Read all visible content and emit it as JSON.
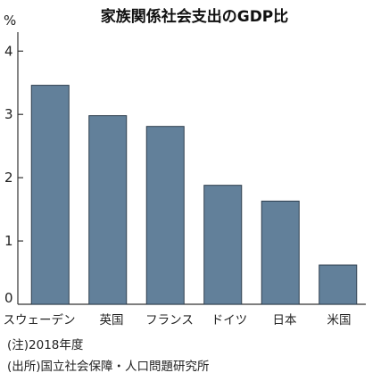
{
  "chart_data": {
    "type": "bar",
    "title": "家族関係社会支出のGDP比",
    "unit": "%",
    "categories": [
      "スウェーデン",
      "英国",
      "フランス",
      "ドイツ",
      "日本",
      "米国"
    ],
    "values": [
      3.46,
      2.98,
      2.81,
      1.88,
      1.63,
      0.62
    ],
    "yticks": [
      0,
      1,
      2,
      3,
      4
    ],
    "ylim": [
      0,
      4.3
    ],
    "grid": false,
    "bar_color": "#62809a"
  },
  "notes": {
    "year": "(注)2018年度",
    "source": "(出所)国立社会保障・人口問題研究所"
  }
}
